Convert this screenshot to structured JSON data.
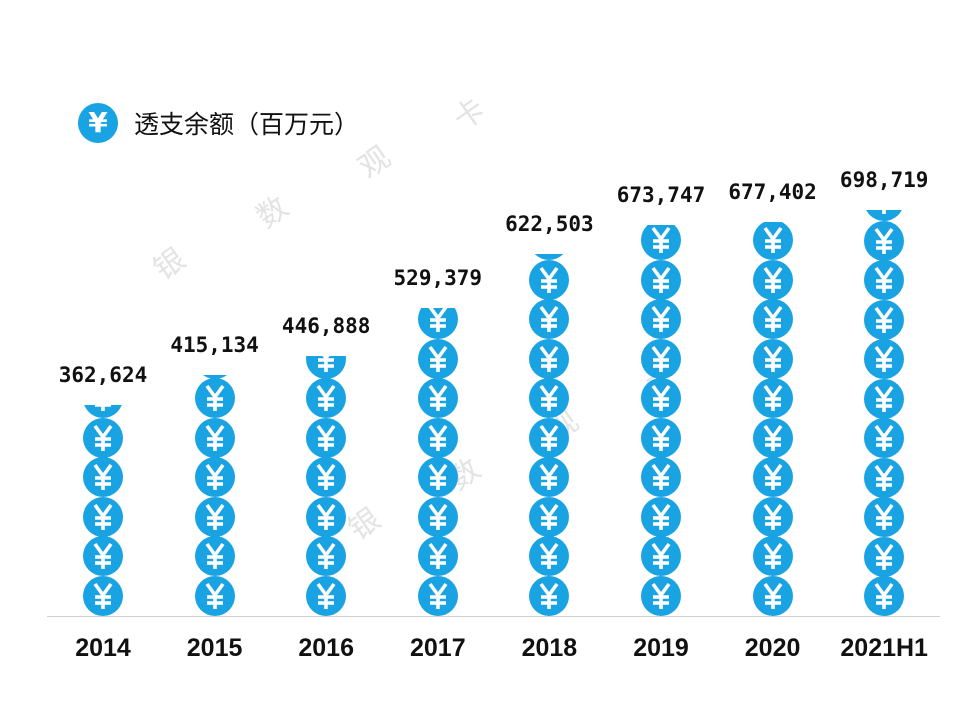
{
  "colors": {
    "coin": "#1aa3e3"
  },
  "icon": "yen-coin-icon",
  "watermark": [
    "银",
    "数",
    "观",
    "卡"
  ],
  "chart_data": {
    "type": "bar",
    "style": "pictograph",
    "legend": {
      "label": "透支余额（百万元）",
      "symbol": "¥",
      "placement": "top-left"
    },
    "categories": [
      "2014",
      "2015",
      "2016",
      "2017",
      "2018",
      "2019",
      "2020",
      "2021H1"
    ],
    "values": [
      362624,
      415134,
      446888,
      529379,
      622503,
      673747,
      677402,
      698719
    ],
    "value_labels": [
      "362,624",
      "415,134",
      "446,888",
      "529,379",
      "622,503",
      "673,747",
      "677,402",
      "698,719"
    ],
    "grid": false
  }
}
